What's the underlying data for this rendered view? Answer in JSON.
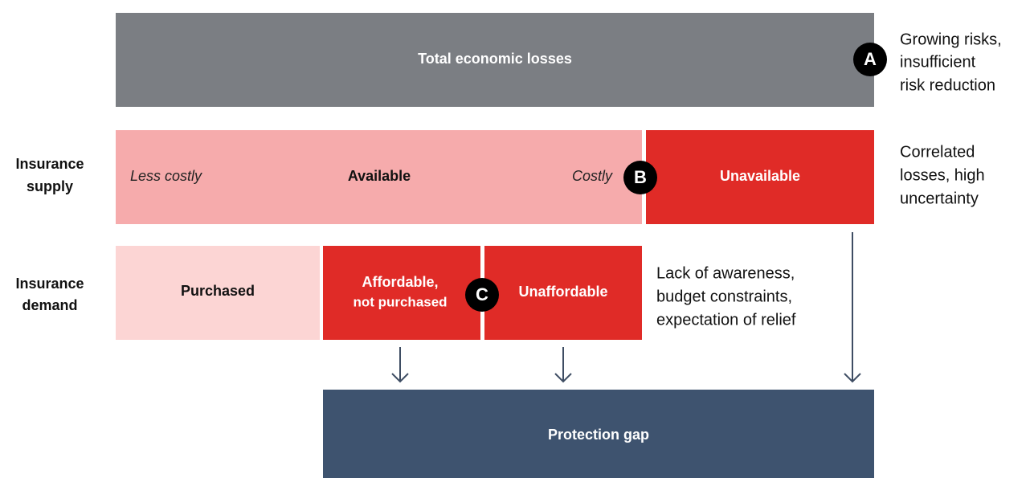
{
  "total": {
    "label": "Total economic losses",
    "badge": "A",
    "note": [
      "Growing risks,",
      "insufficient",
      "risk reduction"
    ]
  },
  "supply": {
    "row_label": [
      "Insurance",
      "supply"
    ],
    "less_costly": "Less costly",
    "available": "Available",
    "costly": "Costly",
    "badge": "B",
    "unavailable": "Unavailable",
    "note": [
      "Correlated",
      "losses, high",
      "uncertainty"
    ]
  },
  "demand": {
    "row_label": [
      "Insurance",
      "demand"
    ],
    "purchased": "Purchased",
    "affordable": [
      "Affordable,",
      "not purchased"
    ],
    "badge": "C",
    "unaffordable": "Unaffordable",
    "note": [
      "Lack of awareness,",
      "budget constraints,",
      "expectation of relief"
    ]
  },
  "gap": {
    "label": "Protection gap"
  }
}
